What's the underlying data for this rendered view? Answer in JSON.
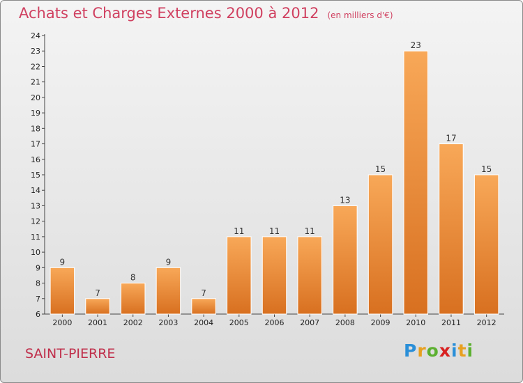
{
  "header": {
    "title": "Achats et Charges Externes 2000 à 2012",
    "unit": "(en milliers d'€)"
  },
  "footer": {
    "commune": "SAINT-PIERRE",
    "logo_letters": [
      {
        "char": "P",
        "color": "#2a8fd8"
      },
      {
        "char": "r",
        "color": "#e8a020"
      },
      {
        "char": "o",
        "color": "#5cb030"
      },
      {
        "char": "x",
        "color": "#d82020"
      },
      {
        "char": "i",
        "color": "#2a8fd8"
      },
      {
        "char": "t",
        "color": "#e8a020"
      },
      {
        "char": "i",
        "color": "#5cb030"
      }
    ]
  },
  "chart_data": {
    "type": "bar",
    "title": "Achats et Charges Externes 2000 à 2012",
    "subtitle": "(en milliers d'€)",
    "xlabel": "",
    "ylabel": "",
    "categories": [
      "2000",
      "2001",
      "2002",
      "2003",
      "2004",
      "2005",
      "2006",
      "2007",
      "2008",
      "2009",
      "2010",
      "2011",
      "2012"
    ],
    "values": [
      9,
      7,
      8,
      9,
      7,
      11,
      11,
      11,
      13,
      15,
      23,
      17,
      15
    ],
    "ylim": [
      6,
      24
    ],
    "yticks": [
      6,
      7,
      8,
      9,
      10,
      11,
      12,
      13,
      14,
      15,
      16,
      17,
      18,
      19,
      20,
      21,
      22,
      23,
      24
    ],
    "grid": false,
    "data_labels": true,
    "bar_color": "#f08a30",
    "bar_color_light": "#f8a858",
    "bar_color_dark": "#d87020"
  }
}
